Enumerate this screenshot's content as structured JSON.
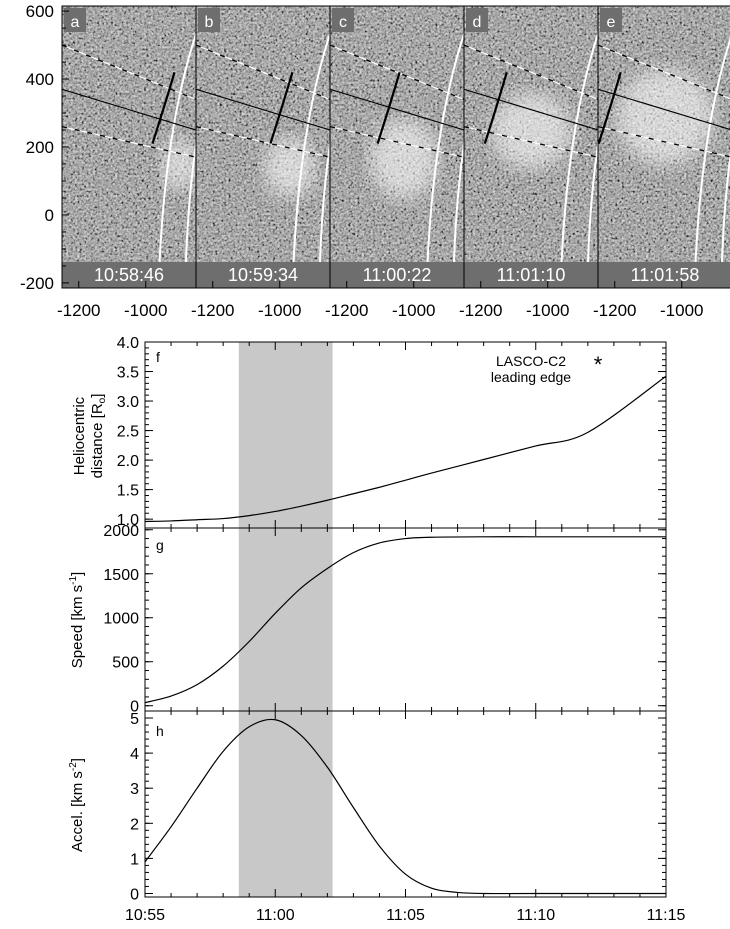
{
  "chart_data": [
    {
      "type": "image",
      "panels": [
        {
          "letter": "a",
          "time": "10:58:46"
        },
        {
          "letter": "b",
          "time": "10:59:34"
        },
        {
          "letter": "c",
          "time": "11:00:22"
        },
        {
          "letter": "d",
          "time": "11:01:10"
        },
        {
          "letter": "e",
          "time": "11:01:58"
        }
      ],
      "y_ticks": [
        600,
        400,
        200,
        0,
        -200
      ],
      "x_tick_groups": [
        [
          -1200,
          -1000
        ],
        [
          -1200,
          -1000
        ],
        [
          -1200,
          -1000
        ],
        [
          -1200,
          -1000
        ],
        [
          -1200,
          -1000
        ]
      ],
      "ylim": [
        -215,
        615
      ],
      "xlim_per_panel": [
        -1250,
        -850
      ]
    },
    {
      "type": "line",
      "panel": "f",
      "ylabel_line1": "Heliocentric",
      "ylabel_line2": "distance [R",
      "ylabel_sub": "o",
      "ylabel_end": "]",
      "yticks": [
        "1.0",
        "1.5",
        "2.0",
        "2.5",
        "3.0",
        "3.5",
        "4.0"
      ],
      "ylim": [
        0.85,
        4.0
      ],
      "legend_line1": "LASCO-C2",
      "legend_line2": "leading edge",
      "legend_symbol": "*",
      "x": [
        "10:55",
        "10:56",
        "10:57",
        "10:58",
        "10:59",
        "11:00",
        "11:01",
        "11:02",
        "11:03",
        "11:04",
        "11:05",
        "11:06",
        "11:08",
        "11:10",
        "11:12",
        "11:15"
      ],
      "values": [
        0.96,
        0.97,
        0.99,
        1.01,
        1.06,
        1.13,
        1.22,
        1.32,
        1.43,
        1.54,
        1.66,
        1.78,
        2.01,
        2.24,
        2.47,
        3.42
      ]
    },
    {
      "type": "line",
      "panel": "g",
      "ylabel": "Speed [km s",
      "ylabel_sup": "-1",
      "ylabel_end": "]",
      "yticks": [
        "0",
        "500",
        "1000",
        "1500",
        "2000"
      ],
      "ylim": [
        -60,
        2020
      ],
      "x": [
        "10:55",
        "10:56",
        "10:57",
        "10:58",
        "10:59",
        "11:00",
        "11:01",
        "11:02",
        "11:03",
        "11:04",
        "11:05",
        "11:06",
        "11:08",
        "11:10",
        "11:12",
        "11:15"
      ],
      "values": [
        35,
        110,
        240,
        450,
        730,
        1050,
        1340,
        1560,
        1740,
        1850,
        1900,
        1915,
        1920,
        1920,
        1920,
        1920
      ]
    },
    {
      "type": "line",
      "panel": "h",
      "ylabel": "Accel. [km s",
      "ylabel_sup": "-2",
      "ylabel_end": "]",
      "yticks": [
        "0",
        "1",
        "2",
        "3",
        "4",
        "5"
      ],
      "ylim": [
        -0.1,
        5.2
      ],
      "x": [
        "10:55",
        "10:56",
        "10:57",
        "10:58",
        "10:59",
        "11:00",
        "11:01",
        "11:02",
        "11:03",
        "11:04",
        "11:05",
        "11:06",
        "11:07",
        "11:08",
        "11:10",
        "11:15"
      ],
      "values": [
        0.9,
        1.9,
        3.0,
        4.05,
        4.75,
        4.95,
        4.5,
        3.6,
        2.45,
        1.35,
        0.55,
        0.15,
        0.03,
        0.0,
        0.0,
        0.0
      ],
      "xticks": [
        "10:55",
        "11:00",
        "11:05",
        "11:10",
        "11:15"
      ],
      "xlim_minutes": [
        0,
        20
      ]
    },
    {
      "type": "shaded_band",
      "x_start": "10:58:36",
      "x_end": "11:02:12"
    }
  ]
}
